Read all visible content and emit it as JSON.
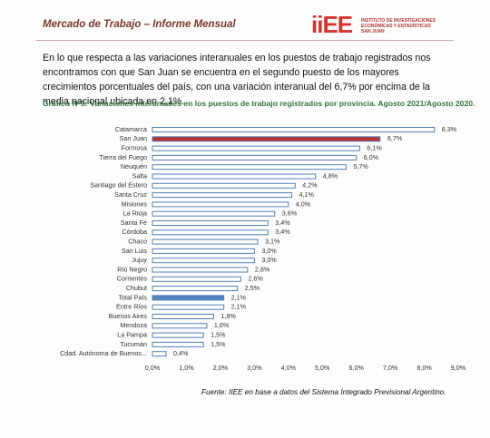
{
  "header": {
    "title": "Mercado de Trabajo – Informe Mensual",
    "logo": "iiEE",
    "logo_lines": [
      "INSTITUTO DE INVESTIGACIONES",
      "ECONÓMICAS Y ESTADÍSTICAS",
      "SAN JUAN"
    ]
  },
  "paragraph": "En lo que respecta a las variaciones interanuales en los puestos de trabajo registrados nos encontramos con que San Juan se encuentra en el segundo puesto de los mayores crecimientos porcentuales del país, con una variación interanual del 6,7% por encima de la media nacional ubicada en 2,1%.",
  "chart_data": {
    "type": "hbar",
    "title": "Gráfico N°3: Variaciones interanuales en los puestos de trabajo registrados por provincia. Agosto 2021/Agosto 2020.",
    "categories": [
      "Catamarca",
      "San Juan",
      "Formosa",
      "Tierra del Fuego",
      "Neuquén",
      "Salta",
      "Santiago del Estero",
      "Santa Cruz",
      "Misiones",
      "La Rioja",
      "Santa Fé",
      "Córdoba",
      "Chaco",
      "San Luis",
      "Jujuy",
      "Río Negro",
      "Corrientes",
      "Chubut",
      "Total País",
      "Entre Ríos",
      "Buenos Aires",
      "Mendoza",
      "La Pampa",
      "Tucumán",
      "Cdad. Autónoma de Buenos..."
    ],
    "values": [
      8.3,
      6.7,
      6.1,
      6.0,
      5.7,
      4.8,
      4.2,
      4.1,
      4.0,
      3.6,
      3.4,
      3.4,
      3.1,
      3.0,
      3.0,
      2.8,
      2.6,
      2.5,
      2.1,
      2.1,
      1.8,
      1.6,
      1.5,
      1.5,
      0.4
    ],
    "value_labels": [
      "8,3%",
      "6,7%",
      "6,1%",
      "6,0%",
      "5,7%",
      "4,8%",
      "4,2%",
      "4,1%",
      "4,0%",
      "3,6%",
      "3,4%",
      "3,4%",
      "3,1%",
      "3,0%",
      "3,0%",
      "2,8%",
      "2,6%",
      "2,5%",
      "2,1%",
      "2,1%",
      "1,8%",
      "1,6%",
      "1,5%",
      "1,5%",
      "0,4%"
    ],
    "bar_colors": [
      "#ffffff",
      "#b8312f",
      "#ffffff",
      "#ffffff",
      "#ffffff",
      "#ffffff",
      "#ffffff",
      "#ffffff",
      "#ffffff",
      "#ffffff",
      "#ffffff",
      "#ffffff",
      "#ffffff",
      "#ffffff",
      "#ffffff",
      "#ffffff",
      "#ffffff",
      "#ffffff",
      "#4f81bd",
      "#ffffff",
      "#ffffff",
      "#ffffff",
      "#ffffff",
      "#ffffff",
      "#ffffff"
    ],
    "edge_color": "#4f81bd",
    "xlim": [
      0,
      9
    ],
    "xticks": [
      {
        "value": 0,
        "label": "0,0%"
      },
      {
        "value": 1,
        "label": "1,0%"
      },
      {
        "value": 2,
        "label": "2,0%"
      },
      {
        "value": 3,
        "label": "3,0%"
      },
      {
        "value": 4,
        "label": "4,0%"
      },
      {
        "value": 5,
        "label": "5,0%"
      },
      {
        "value": 6,
        "label": "6,0%"
      },
      {
        "value": 7,
        "label": "7,0%"
      },
      {
        "value": 8,
        "label": "8,0%"
      },
      {
        "value": 9,
        "label": "9,0%"
      }
    ],
    "source": "Fuente: IIEE en base a datos del Sistema Integrado Previsional Argentino."
  }
}
